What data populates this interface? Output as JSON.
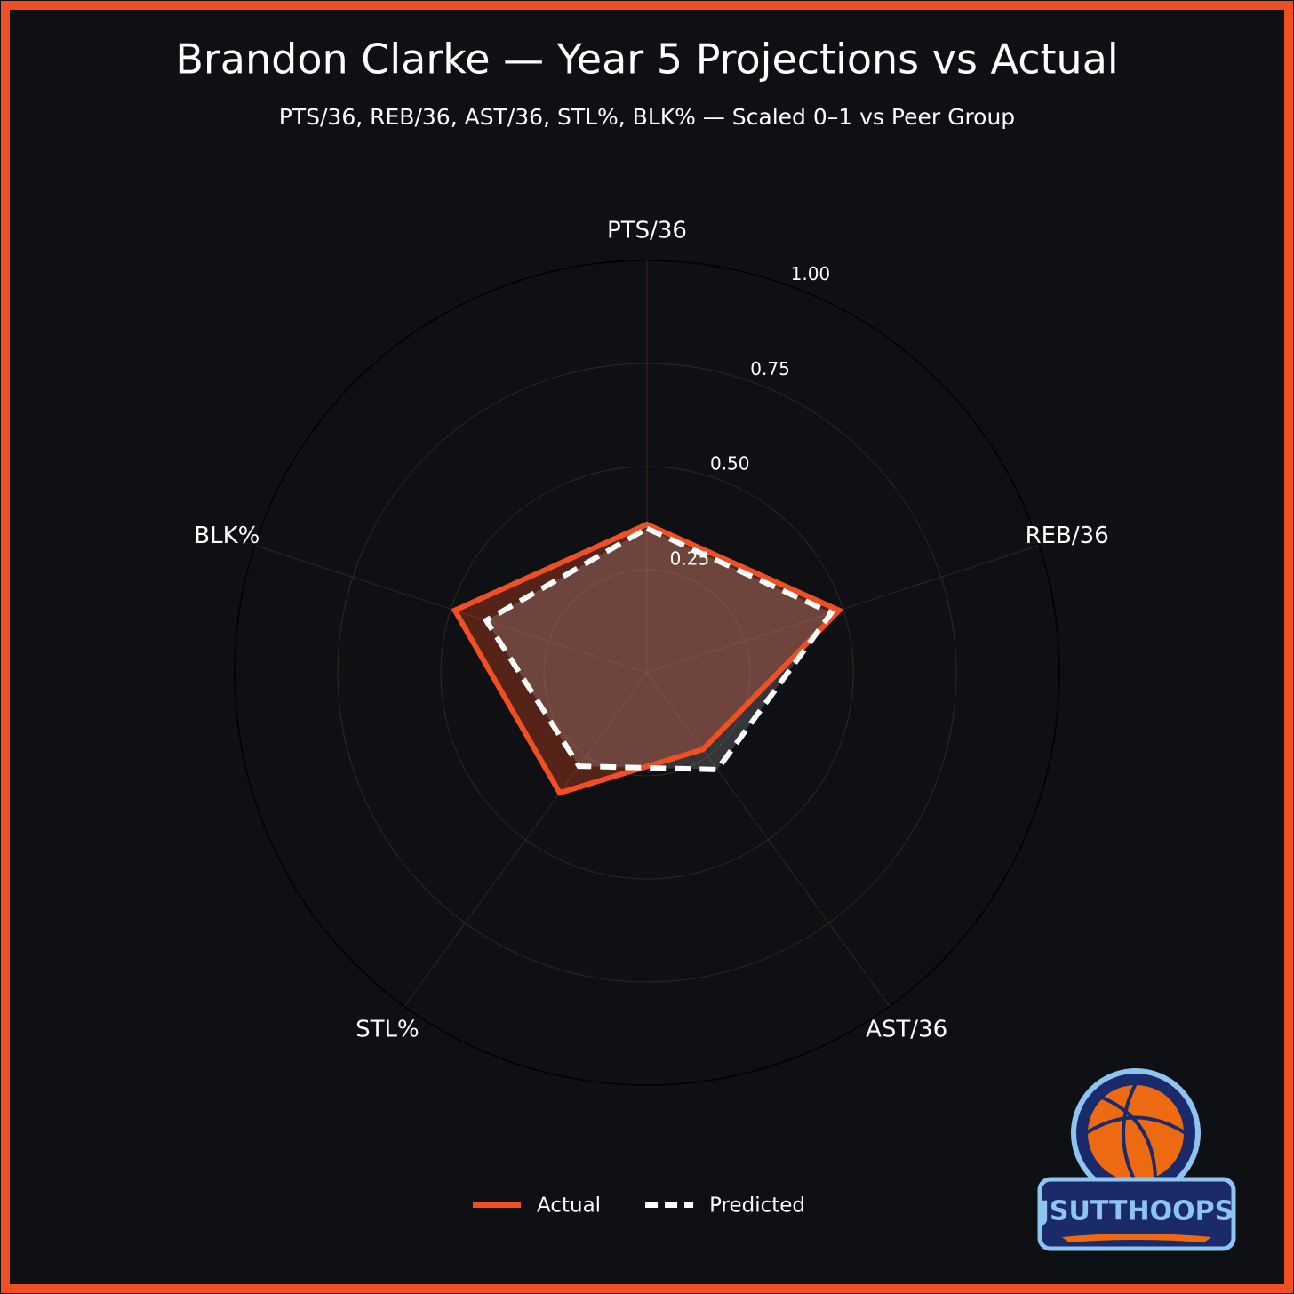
{
  "chart_data": {
    "type": "radar",
    "title": "Brandon Clarke — Year 5 Projections vs Actual",
    "subtitle": "PTS/36, REB/36, AST/36, STL%, BLK% — Scaled 0–1 vs Peer Group",
    "categories": [
      "PTS/36",
      "REB/36",
      "AST/36",
      "STL%",
      "BLK%"
    ],
    "series": [
      {
        "name": "Actual",
        "color": "#f04e23",
        "values": [
          0.36,
          0.49,
          0.23,
          0.36,
          0.49
        ]
      },
      {
        "name": "Predicted",
        "color": "#ffffff",
        "values": [
          0.35,
          0.47,
          0.29,
          0.28,
          0.41
        ]
      }
    ],
    "rlim": [
      0,
      1
    ],
    "rticks": [
      0.25,
      {
        "value": 0.5,
        "label": "0.50"
      },
      0.75,
      {
        "value": 1,
        "label": "1.00"
      }
    ],
    "grid": true,
    "legend": "bottom"
  },
  "logo_text": "JSUTTHOOPS"
}
